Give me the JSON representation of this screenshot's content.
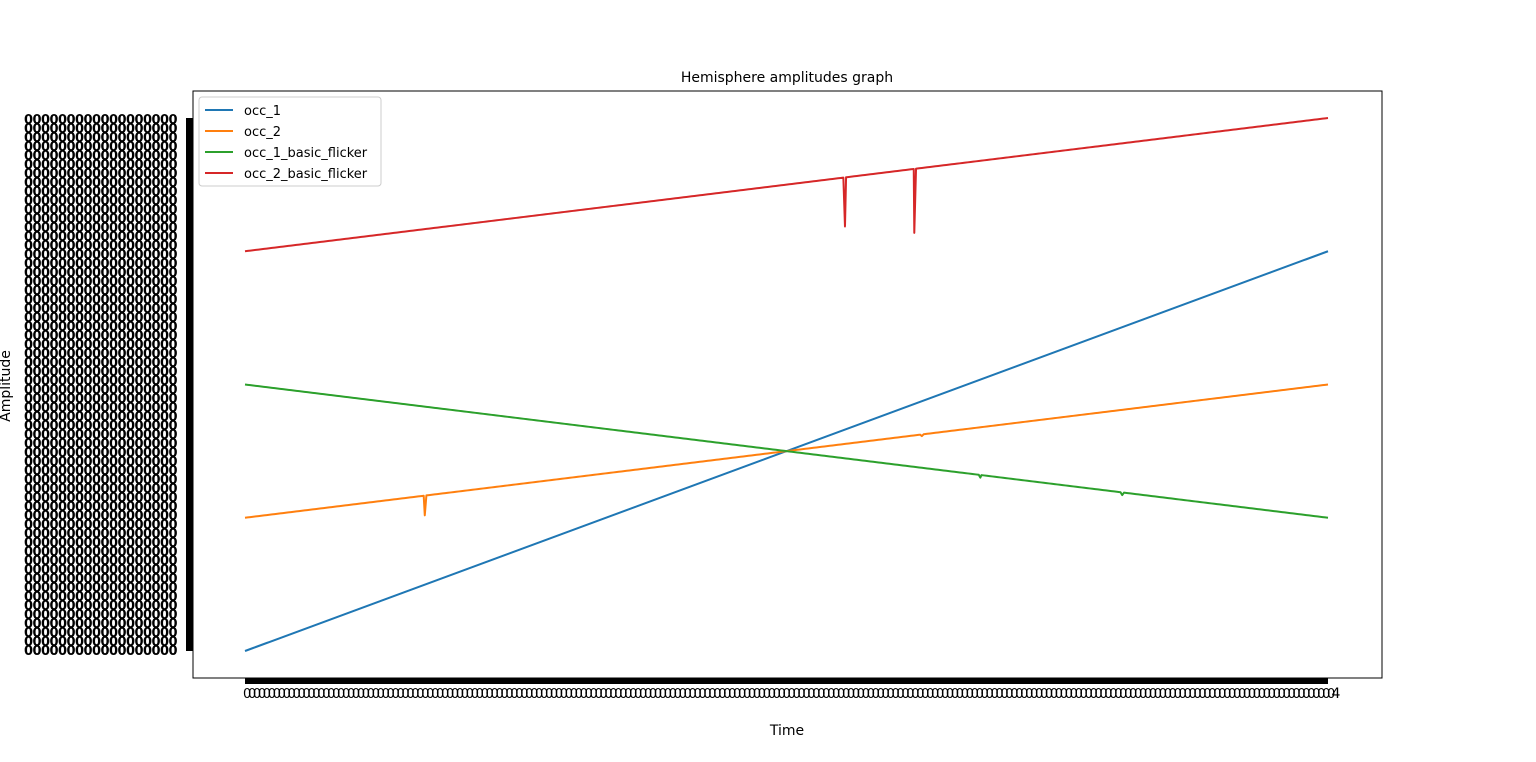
{
  "chart_data": {
    "type": "line",
    "title": "Hemisphere amplitudes graph",
    "xlabel": "Time",
    "ylabel": "Amplitude",
    "x_ticks_label_sample": "0",
    "x_end_label": "4",
    "legend_position": "upper left",
    "grid": false,
    "x_range": [
      0,
      1
    ],
    "y_range": [
      0,
      1
    ],
    "series": [
      {
        "name": "occ_1",
        "color": "#1f77b4",
        "start": 0.0,
        "end": 0.75,
        "dips": []
      },
      {
        "name": "occ_2",
        "color": "#ff7f0e",
        "start": 0.25,
        "end": 0.5,
        "dips": [
          {
            "x": 0.166,
            "depth": 0.037
          },
          {
            "x": 0.625,
            "depth": 0.003
          }
        ]
      },
      {
        "name": "occ_1_basic_flicker",
        "color": "#2ca02c",
        "start": 0.5,
        "end": 0.25,
        "dips": [
          {
            "x": 0.679,
            "depth": 0.005
          },
          {
            "x": 0.81,
            "depth": 0.005
          }
        ]
      },
      {
        "name": "occ_2_basic_flicker",
        "color": "#d62728",
        "start": 0.75,
        "end": 1.0,
        "dips": [
          {
            "x": 0.554,
            "depth": 0.092
          },
          {
            "x": 0.618,
            "depth": 0.12
          }
        ]
      }
    ]
  }
}
